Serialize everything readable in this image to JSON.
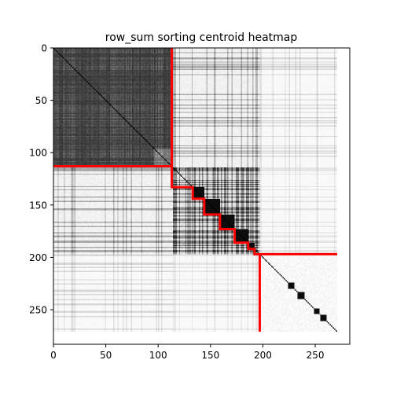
{
  "chart_data": {
    "type": "heatmap",
    "title": "row_sum sorting centroid heatmap",
    "xlabel": "",
    "ylabel": "",
    "n": 271,
    "xlim": [
      0,
      283
    ],
    "ylim": [
      283,
      0
    ],
    "colormap": "gray_r",
    "x_ticks": [
      0,
      50,
      100,
      150,
      200,
      250
    ],
    "y_ticks": [
      0,
      50,
      100,
      150,
      200,
      250
    ],
    "blocks": [
      {
        "start": 0,
        "end": 114,
        "level": 0.82
      },
      {
        "start": 114,
        "end": 197,
        "level": 0.55
      },
      {
        "start": 197,
        "end": 271,
        "level": 0.05
      }
    ],
    "diagonal_clusters": [
      {
        "start": 133,
        "end": 144
      },
      {
        "start": 144,
        "end": 159
      },
      {
        "start": 159,
        "end": 173
      },
      {
        "start": 173,
        "end": 186
      },
      {
        "start": 186,
        "end": 192
      },
      {
        "start": 224,
        "end": 230
      },
      {
        "start": 233,
        "end": 240
      },
      {
        "start": 249,
        "end": 254
      },
      {
        "start": 255,
        "end": 261
      }
    ],
    "boundary_lines": {
      "color": "#ff0000",
      "horizontal": [
        {
          "y": 113,
          "x_from": 0,
          "x_to": 113
        },
        {
          "y": 197,
          "x_from": 197,
          "x_to": 271
        }
      ],
      "vertical": [
        {
          "x": 113,
          "y_from": 0,
          "y_to": 113
        },
        {
          "x": 197,
          "y_from": 197,
          "y_to": 271
        }
      ],
      "staircase": [
        [
          113,
          113
        ],
        [
          113,
          133
        ],
        [
          133,
          133
        ],
        [
          133,
          144
        ],
        [
          144,
          144
        ],
        [
          144,
          159
        ],
        [
          159,
          159
        ],
        [
          159,
          173
        ],
        [
          173,
          173
        ],
        [
          173,
          186
        ],
        [
          186,
          186
        ],
        [
          186,
          192
        ],
        [
          192,
          192
        ],
        [
          192,
          197
        ],
        [
          197,
          197
        ]
      ]
    }
  }
}
